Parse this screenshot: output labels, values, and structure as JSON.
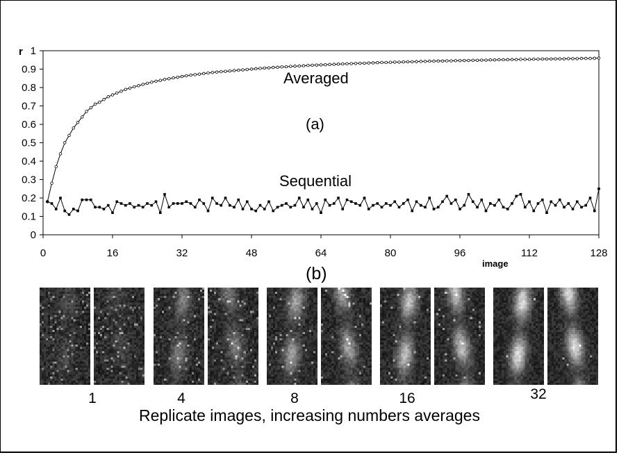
{
  "chart_data": {
    "type": "line",
    "ylabel": "r",
    "xlabel": "image",
    "panel_labels": {
      "a": "(a)",
      "b": "(b)"
    },
    "xlim": [
      0,
      128
    ],
    "ylim": [
      0,
      1
    ],
    "xticks": [
      "0",
      "16",
      "32",
      "48",
      "64",
      "80",
      "96",
      "112",
      "128"
    ],
    "yticks": [
      "0",
      "0.1",
      "0.2",
      "0.3",
      "0.4",
      "0.5",
      "0.6",
      "0.7",
      "0.8",
      "0.9",
      "1"
    ],
    "series": [
      {
        "name": "Averaged",
        "marker": "open-circle",
        "x": [
          1,
          2,
          3,
          4,
          5,
          6,
          7,
          8,
          9,
          10,
          11,
          12,
          13,
          14,
          15,
          16,
          17,
          18,
          19,
          20,
          21,
          22,
          23,
          24,
          25,
          26,
          27,
          28,
          29,
          30,
          31,
          32,
          33,
          34,
          35,
          36,
          37,
          38,
          39,
          40,
          41,
          42,
          43,
          44,
          45,
          46,
          47,
          48,
          49,
          50,
          51,
          52,
          53,
          54,
          55,
          56,
          57,
          58,
          59,
          60,
          61,
          62,
          63,
          64,
          65,
          66,
          67,
          68,
          69,
          70,
          71,
          72,
          73,
          74,
          75,
          76,
          77,
          78,
          79,
          80,
          81,
          82,
          83,
          84,
          85,
          86,
          87,
          88,
          89,
          90,
          91,
          92,
          93,
          94,
          95,
          96,
          97,
          98,
          99,
          100,
          101,
          102,
          103,
          104,
          105,
          106,
          107,
          108,
          109,
          110,
          111,
          112,
          113,
          114,
          115,
          116,
          117,
          118,
          119,
          120,
          121,
          122,
          123,
          124,
          125,
          126,
          127,
          128
        ],
        "y": [
          0.18,
          0.28,
          0.37,
          0.44,
          0.5,
          0.54,
          0.58,
          0.61,
          0.64,
          0.67,
          0.69,
          0.71,
          0.72,
          0.735,
          0.75,
          0.76,
          0.77,
          0.78,
          0.79,
          0.797,
          0.804,
          0.81,
          0.817,
          0.823,
          0.829,
          0.834,
          0.839,
          0.844,
          0.848,
          0.852,
          0.856,
          0.86,
          0.864,
          0.867,
          0.87,
          0.873,
          0.876,
          0.879,
          0.882,
          0.884,
          0.886,
          0.888,
          0.89,
          0.892,
          0.894,
          0.896,
          0.898,
          0.9,
          0.902,
          0.904,
          0.906,
          0.907,
          0.909,
          0.91,
          0.912,
          0.913,
          0.915,
          0.916,
          0.917,
          0.918,
          0.92,
          0.921,
          0.922,
          0.923,
          0.924,
          0.925,
          0.926,
          0.927,
          0.928,
          0.929,
          0.93,
          0.931,
          0.932,
          0.932,
          0.933,
          0.934,
          0.935,
          0.936,
          0.936,
          0.937,
          0.938,
          0.938,
          0.939,
          0.94,
          0.94,
          0.941,
          0.942,
          0.942,
          0.943,
          0.943,
          0.944,
          0.944,
          0.945,
          0.945,
          0.946,
          0.946,
          0.947,
          0.947,
          0.948,
          0.948,
          0.949,
          0.949,
          0.95,
          0.95,
          0.951,
          0.951,
          0.951,
          0.952,
          0.952,
          0.953,
          0.953,
          0.953,
          0.954,
          0.954,
          0.955,
          0.955,
          0.955,
          0.956,
          0.956,
          0.956,
          0.957,
          0.957,
          0.957,
          0.958,
          0.958,
          0.958,
          0.959,
          0.96
        ]
      },
      {
        "name": "Sequential",
        "marker": "filled-square",
        "x": [
          1,
          2,
          3,
          4,
          5,
          6,
          7,
          8,
          9,
          10,
          11,
          12,
          13,
          14,
          15,
          16,
          17,
          18,
          19,
          20,
          21,
          22,
          23,
          24,
          25,
          26,
          27,
          28,
          29,
          30,
          31,
          32,
          33,
          34,
          35,
          36,
          37,
          38,
          39,
          40,
          41,
          42,
          43,
          44,
          45,
          46,
          47,
          48,
          49,
          50,
          51,
          52,
          53,
          54,
          55,
          56,
          57,
          58,
          59,
          60,
          61,
          62,
          63,
          64,
          65,
          66,
          67,
          68,
          69,
          70,
          71,
          72,
          73,
          74,
          75,
          76,
          77,
          78,
          79,
          80,
          81,
          82,
          83,
          84,
          85,
          86,
          87,
          88,
          89,
          90,
          91,
          92,
          93,
          94,
          95,
          96,
          97,
          98,
          99,
          100,
          101,
          102,
          103,
          104,
          105,
          106,
          107,
          108,
          109,
          110,
          111,
          112,
          113,
          114,
          115,
          116,
          117,
          118,
          119,
          120,
          121,
          122,
          123,
          124,
          125,
          126,
          127,
          128
        ],
        "y": [
          0.18,
          0.17,
          0.14,
          0.2,
          0.13,
          0.11,
          0.14,
          0.13,
          0.19,
          0.19,
          0.19,
          0.15,
          0.15,
          0.14,
          0.16,
          0.12,
          0.18,
          0.17,
          0.16,
          0.17,
          0.15,
          0.16,
          0.15,
          0.17,
          0.16,
          0.18,
          0.12,
          0.22,
          0.15,
          0.17,
          0.17,
          0.17,
          0.18,
          0.17,
          0.15,
          0.19,
          0.17,
          0.13,
          0.2,
          0.17,
          0.16,
          0.2,
          0.16,
          0.15,
          0.19,
          0.14,
          0.18,
          0.14,
          0.13,
          0.16,
          0.14,
          0.18,
          0.13,
          0.15,
          0.16,
          0.17,
          0.15,
          0.16,
          0.2,
          0.15,
          0.19,
          0.14,
          0.17,
          0.12,
          0.19,
          0.16,
          0.17,
          0.2,
          0.14,
          0.19,
          0.18,
          0.17,
          0.16,
          0.2,
          0.14,
          0.16,
          0.17,
          0.15,
          0.17,
          0.16,
          0.18,
          0.15,
          0.17,
          0.19,
          0.13,
          0.18,
          0.16,
          0.15,
          0.2,
          0.14,
          0.15,
          0.18,
          0.21,
          0.17,
          0.19,
          0.14,
          0.16,
          0.22,
          0.18,
          0.15,
          0.19,
          0.13,
          0.17,
          0.16,
          0.19,
          0.15,
          0.14,
          0.17,
          0.21,
          0.22,
          0.15,
          0.18,
          0.13,
          0.17,
          0.19,
          0.12,
          0.18,
          0.16,
          0.19,
          0.15,
          0.17,
          0.14,
          0.18,
          0.15,
          0.16,
          0.2,
          0.13,
          0.25
        ]
      }
    ]
  },
  "thumbnails": [
    {
      "label": "1",
      "brightness": 0.15
    },
    {
      "label": "4",
      "brightness": 0.4
    },
    {
      "label": "8",
      "brightness": 0.6
    },
    {
      "label": "16",
      "brightness": 0.75
    },
    {
      "label": "32",
      "brightness": 0.9
    }
  ],
  "caption": "Replicate images, increasing numbers averages"
}
